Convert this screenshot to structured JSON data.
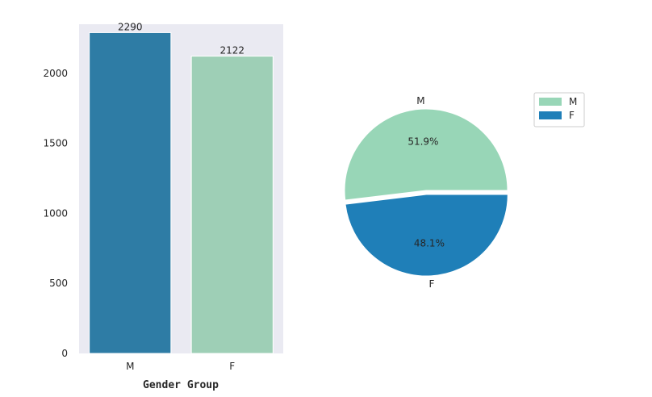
{
  "chart_data": [
    {
      "type": "bar",
      "categories": [
        "M",
        "F"
      ],
      "values": [
        2290,
        2122
      ],
      "data_labels": [
        "2290",
        "2122"
      ],
      "colors": [
        "#2e7ca5",
        "#9ecfb6"
      ],
      "xlabel": "Gender Group",
      "ylabel": "",
      "ylim": [
        0,
        2350
      ],
      "yticks": [
        0,
        500,
        1000,
        1500,
        2000
      ],
      "grid": false,
      "background": "#eaeaf2"
    },
    {
      "type": "pie",
      "labels": [
        "M",
        "F"
      ],
      "values": [
        51.9,
        48.1
      ],
      "pct_labels": [
        "51.9%",
        "48.1%"
      ],
      "colors": [
        "#98d6b7",
        "#1f7fb8"
      ],
      "explode": [
        0,
        0.05
      ],
      "legend": {
        "placement": "top-right",
        "entries": [
          "M",
          "F"
        ]
      }
    }
  ]
}
